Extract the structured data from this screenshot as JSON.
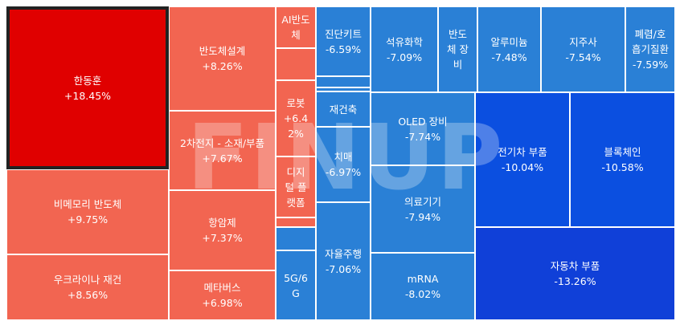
{
  "chart_data": {
    "type": "treemap",
    "colors": {
      "up_strong": "#e00000",
      "up": "#f26551",
      "down": "#2a80d6",
      "down_strong": "#0b4fe0",
      "down_strongest": "#1040d8",
      "border": "#ffffff",
      "highlight_border": "#222222"
    },
    "watermark": "FINUP",
    "items": [
      {
        "name": "한동훈",
        "change": "+18.45%",
        "highlight": true
      },
      {
        "name": "비메모리 반도체",
        "change": "+9.75%"
      },
      {
        "name": "우크라이나 재건",
        "change": "+8.56%"
      },
      {
        "name": "반도체설계",
        "change": "+8.26%"
      },
      {
        "name": "2차전지 - 소재/부품",
        "change": "+7.67%"
      },
      {
        "name": "항암제",
        "change": "+7.37%"
      },
      {
        "name": "메타버스",
        "change": "+6.98%"
      },
      {
        "name": "AI반도\n체",
        "change": ""
      },
      {
        "name": "",
        "change": ""
      },
      {
        "name": "로봇\n+6.4\n2%",
        "change": ""
      },
      {
        "name": "디지\n털 플\n랫폼",
        "change": ""
      },
      {
        "name": "",
        "change": ""
      },
      {
        "name": "",
        "change": ""
      },
      {
        "name": "5G/6\nG",
        "change": ""
      },
      {
        "name": "진단키트",
        "change": "-6.59%"
      },
      {
        "name": "",
        "change": ""
      },
      {
        "name": "",
        "change": ""
      },
      {
        "name": "재건축",
        "change": ""
      },
      {
        "name": "치매",
        "change": "-6.97%"
      },
      {
        "name": "자율주행",
        "change": "-7.06%"
      },
      {
        "name": "석유화학",
        "change": "-7.09%"
      },
      {
        "name": "반도\n체 장\n비",
        "change": ""
      },
      {
        "name": "알루미늄",
        "change": "-7.48%"
      },
      {
        "name": "지주사",
        "change": "-7.54%"
      },
      {
        "name": "폐렴/호\n흡기질환",
        "change": "-7.59%"
      },
      {
        "name": "OLED 장비",
        "change": "-7.74%"
      },
      {
        "name": "의료기기",
        "change": "-7.94%"
      },
      {
        "name": "mRNA",
        "change": "-8.02%"
      },
      {
        "name": "전기차 부품",
        "change": "-10.04%"
      },
      {
        "name": "블록체인",
        "change": "-10.58%"
      },
      {
        "name": "자동차 부품",
        "change": "-13.26%"
      }
    ]
  }
}
